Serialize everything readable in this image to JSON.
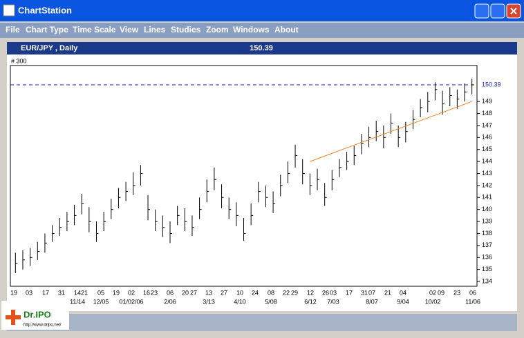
{
  "window": {
    "title": "ChartStation",
    "menu": [
      "File",
      "Chart Type",
      "Time Scale",
      "View",
      "Lines",
      "Studies",
      "Zoom",
      "Windows",
      "About"
    ]
  },
  "chart_data": {
    "type": "ohlc",
    "title": "EUR/JPY , Daily",
    "last": 150.39,
    "corner_label": "# 300",
    "ylim": [
      133.6,
      152.0
    ],
    "yticks": [
      134,
      135,
      136,
      137,
      138,
      139,
      140,
      141,
      142,
      143,
      144,
      145,
      146,
      147,
      148,
      149
    ],
    "close": [
      135.5,
      135.8,
      136.0,
      136.5,
      137.2,
      138.0,
      138.5,
      139.0,
      139.5,
      140.5,
      139.0,
      138.0,
      139.0,
      140.0,
      141.0,
      141.5,
      142.0,
      143.0,
      140.0,
      139.0,
      138.5,
      138.0,
      139.5,
      139.0,
      138.5,
      140.0,
      141.5,
      142.5,
      141.0,
      140.0,
      139.5,
      138.0,
      139.5,
      141.5,
      141.0,
      140.5,
      142.0,
      143.0,
      144.5,
      143.0,
      142.0,
      142.5,
      141.0,
      142.5,
      143.5,
      144.0,
      144.5,
      145.5,
      146.0,
      146.5,
      146.0,
      147.2,
      146.0,
      146.5,
      147.5,
      148.5,
      149.0,
      150.0,
      148.8,
      149.5,
      149.2,
      149.8,
      150.39
    ],
    "high": [
      136.4,
      136.6,
      136.8,
      137.3,
      138.0,
      138.7,
      139.3,
      139.8,
      140.4,
      141.3,
      140.2,
      139.0,
      139.8,
      140.9,
      141.8,
      142.3,
      143.1,
      143.7,
      141.2,
      140.0,
      139.5,
      139.0,
      140.3,
      140.1,
      139.5,
      141.0,
      142.5,
      143.5,
      142.1,
      141.0,
      140.6,
      139.3,
      140.5,
      142.3,
      142.0,
      141.5,
      142.9,
      144.0,
      145.4,
      144.2,
      143.0,
      143.4,
      142.2,
      143.3,
      144.2,
      144.8,
      145.3,
      146.3,
      146.9,
      147.4,
      147.0,
      148.0,
      147.0,
      147.3,
      148.3,
      149.2,
      149.8,
      150.6,
      149.9,
      150.2,
      150.0,
      150.5,
      150.9
    ],
    "low": [
      134.7,
      135.0,
      135.3,
      135.8,
      136.4,
      137.3,
      137.8,
      138.2,
      138.7,
      139.6,
      138.1,
      137.3,
      138.2,
      139.2,
      140.1,
      140.7,
      141.2,
      142.0,
      139.1,
      138.2,
      137.7,
      137.2,
      138.7,
      138.2,
      137.8,
      139.2,
      140.6,
      141.6,
      140.1,
      139.2,
      138.6,
      137.4,
      138.7,
      140.6,
      140.2,
      139.7,
      141.1,
      142.2,
      143.5,
      142.1,
      141.2,
      141.6,
      140.3,
      141.6,
      142.7,
      143.3,
      143.7,
      144.6,
      145.2,
      145.7,
      145.1,
      146.3,
      145.2,
      145.6,
      146.7,
      147.7,
      148.1,
      149.1,
      147.9,
      148.6,
      148.4,
      149.0,
      149.6
    ],
    "trendline": {
      "x": [
        40,
        62
      ],
      "y": [
        144.0,
        149.0
      ]
    },
    "xlabels": [
      "19",
      "03",
      "17",
      "31",
      "14",
      "21",
      "05",
      "19",
      "02",
      "16",
      "23",
      "06",
      "20",
      "27",
      "13",
      "27",
      "10",
      "24",
      "08",
      "22",
      "29",
      "12",
      "26",
      "03",
      "17",
      "31",
      "07",
      "21",
      "04",
      "02",
      "09",
      "23",
      "06"
    ],
    "xlabels2": [
      "11/14",
      "12/05",
      "01/02/06",
      "2/06",
      "3/13",
      "4/10",
      "5/08",
      "6/12",
      "7/03",
      "8/07",
      "9/04",
      "10/02",
      "11/06"
    ]
  },
  "logo": {
    "name": "Dr.IPO",
    "url": "http://www.drlpo.net/"
  }
}
